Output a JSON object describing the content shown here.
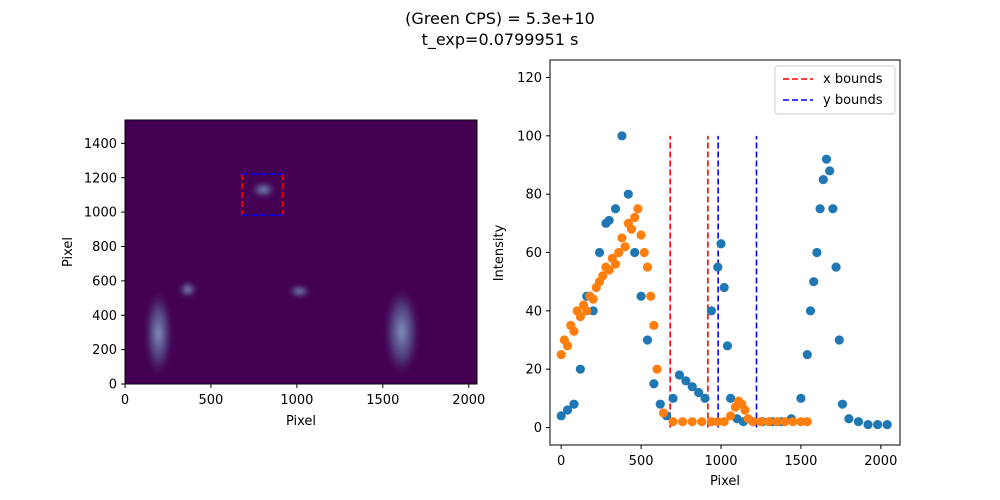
{
  "figure": {
    "title_line1": "(Green CPS) = 5.3e+10",
    "title_line2": "t_exp=0.0799951 s"
  },
  "chart_data": [
    {
      "type": "heatmap",
      "xlabel": "Pixel",
      "ylabel": "Pixel",
      "xlim": [
        0,
        2048
      ],
      "ylim": [
        0,
        1536
      ],
      "xticks": [
        0,
        500,
        1000,
        1500,
        2000
      ],
      "yticks": [
        0,
        200,
        400,
        600,
        800,
        1000,
        1200,
        1400
      ],
      "colors": {
        "background": "#440154",
        "glow": "#5b6fa3",
        "bright": "#8fa7c8"
      },
      "bright_regions": [
        {
          "x": [
            110,
            280
          ],
          "y": [
            30,
            560
          ]
        },
        {
          "x": [
            310,
            420
          ],
          "y": [
            500,
            600
          ]
        },
        {
          "x": [
            950,
            1080
          ],
          "y": [
            500,
            580
          ]
        },
        {
          "x": [
            1500,
            1720
          ],
          "y": [
            30,
            580
          ]
        },
        {
          "x": [
            730,
            880
          ],
          "y": [
            1080,
            1180
          ]
        }
      ],
      "roi_x_bounds": [
        682,
        918
      ],
      "roi_y_bounds": [
        982,
        1222
      ],
      "roi_colors": {
        "x": "#ff0000",
        "y": "#0000ff"
      }
    },
    {
      "type": "scatter",
      "xlabel": "Pixel",
      "ylabel": "Intensity",
      "xlim": [
        -70,
        2120
      ],
      "ylim": [
        -6,
        126
      ],
      "xticks": [
        0,
        500,
        1000,
        1500,
        2000
      ],
      "yticks": [
        0,
        20,
        40,
        60,
        80,
        100,
        120
      ],
      "legend_position": "top-right",
      "legend": [
        {
          "label": "x bounds",
          "color": "#ff0000",
          "style": "dashed"
        },
        {
          "label": "y bounds",
          "color": "#0000ff",
          "style": "dashed"
        }
      ],
      "bounds": {
        "x": {
          "values": [
            682,
            918
          ],
          "y_range": [
            0,
            100
          ],
          "color": "#ff0000"
        },
        "y": {
          "values": [
            982,
            1222
          ],
          "y_range": [
            0,
            100
          ],
          "color": "#0000ff"
        }
      },
      "series": [
        {
          "color": "#1f77b4",
          "x": [
            0,
            40,
            80,
            120,
            160,
            200,
            240,
            280,
            300,
            340,
            380,
            420,
            460,
            500,
            540,
            580,
            620,
            660,
            700,
            740,
            780,
            820,
            860,
            900,
            940,
            980,
            1000,
            1020,
            1040,
            1060,
            1100,
            1140,
            1200,
            1260,
            1320,
            1380,
            1440,
            1500,
            1540,
            1560,
            1580,
            1600,
            1620,
            1640,
            1660,
            1680,
            1700,
            1720,
            1740,
            1760,
            1800,
            1860,
            1920,
            1980,
            2040
          ],
          "y": [
            4,
            6,
            8,
            20,
            45,
            40,
            60,
            70,
            71,
            75,
            100,
            80,
            60,
            45,
            30,
            15,
            8,
            4,
            10,
            18,
            16,
            14,
            12,
            10,
            40,
            55,
            63,
            48,
            28,
            10,
            3,
            2,
            2,
            2,
            2,
            2,
            3,
            10,
            25,
            40,
            50,
            60,
            75,
            85,
            92,
            88,
            75,
            55,
            30,
            8,
            3,
            2,
            1,
            1,
            1
          ]
        },
        {
          "color": "#ff7f0e",
          "x": [
            0,
            20,
            40,
            60,
            80,
            100,
            120,
            140,
            160,
            180,
            200,
            220,
            240,
            260,
            280,
            300,
            320,
            340,
            360,
            380,
            400,
            420,
            440,
            460,
            480,
            500,
            520,
            540,
            560,
            580,
            600,
            640,
            700,
            760,
            820,
            880,
            940,
            980,
            1020,
            1060,
            1090,
            1110,
            1130,
            1150,
            1170,
            1200,
            1250,
            1300,
            1350,
            1400,
            1450,
            1500,
            1540
          ],
          "y": [
            25,
            30,
            28,
            35,
            33,
            40,
            38,
            42,
            40,
            45,
            44,
            48,
            50,
            52,
            55,
            54,
            58,
            56,
            60,
            65,
            62,
            70,
            68,
            72,
            75,
            66,
            60,
            55,
            45,
            35,
            20,
            5,
            2,
            2,
            2,
            2,
            2,
            2,
            2,
            4,
            7,
            9,
            8,
            6,
            3,
            2,
            2,
            2,
            2,
            2,
            2,
            2,
            2
          ]
        }
      ]
    }
  ]
}
